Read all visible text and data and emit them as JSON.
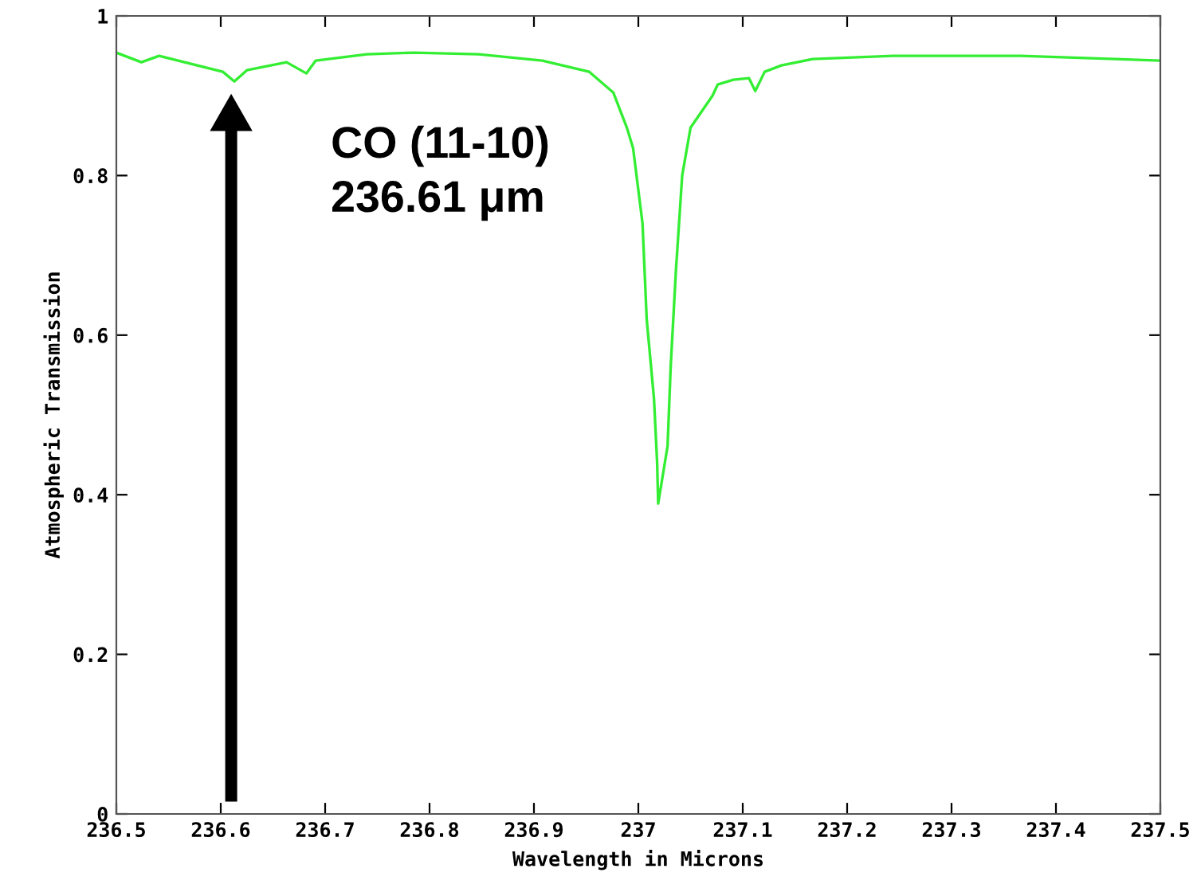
{
  "chart_data": {
    "type": "line",
    "xlabel": "Wavelength in Microns",
    "ylabel": "Atmospheric Transmission",
    "x": [
      236.5,
      236.524,
      236.541,
      236.602,
      236.613,
      236.625,
      236.663,
      236.682,
      236.691,
      236.74,
      236.785,
      236.847,
      236.908,
      236.953,
      236.976,
      236.989,
      236.995,
      237.004,
      237.008,
      237.015,
      237.018,
      237.019,
      237.028,
      237.031,
      237.036,
      237.042,
      237.05,
      237.071,
      237.076,
      237.091,
      237.106,
      237.112,
      237.121,
      237.137,
      237.167,
      237.244,
      237.366,
      237.457,
      237.5
    ],
    "series": [
      {
        "color": "#33ee33",
        "values": [
          0.954,
          0.942,
          0.95,
          0.93,
          0.918,
          0.932,
          0.942,
          0.928,
          0.944,
          0.952,
          0.954,
          0.952,
          0.944,
          0.93,
          0.904,
          0.86,
          0.834,
          0.74,
          0.62,
          0.52,
          0.44,
          0.389,
          0.461,
          0.561,
          0.681,
          0.8,
          0.86,
          0.9,
          0.914,
          0.92,
          0.922,
          0.906,
          0.93,
          0.938,
          0.946,
          0.95,
          0.95,
          0.946,
          0.944
        ]
      }
    ],
    "xlim": [
      236.5,
      237.5
    ],
    "ylim": [
      0,
      1
    ],
    "xticks": [
      236.5,
      236.6,
      236.7,
      236.8,
      236.9,
      237,
      237.1,
      237.2,
      237.3,
      237.4,
      237.5
    ],
    "yticks": [
      0,
      0.2,
      0.4,
      0.6,
      0.8,
      1
    ],
    "grid": false,
    "legend": false,
    "marker": "none",
    "line_style": "solid",
    "annotations": [
      {
        "text": "CO (11-10)\n236.61 μm",
        "x": 236.61,
        "y": 0.918
      }
    ]
  }
}
